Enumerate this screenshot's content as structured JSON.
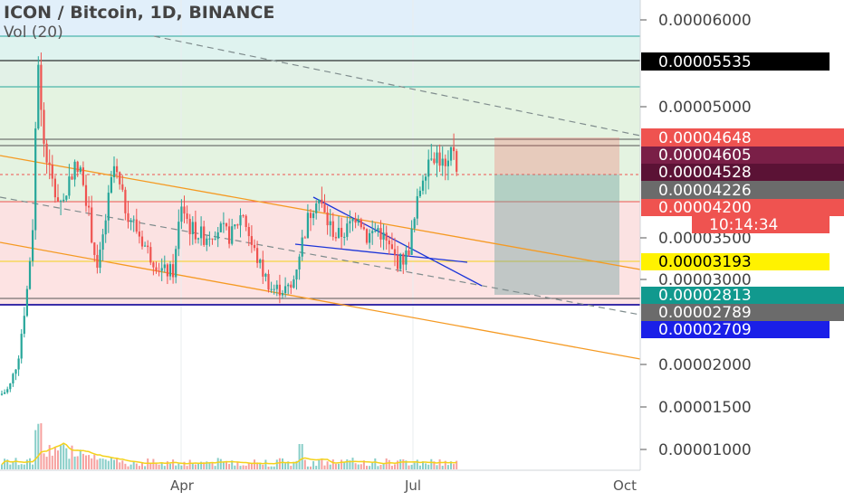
{
  "header": {
    "title": "ICON / Bitcoin, 1D, BINANCE",
    "indicator": "Vol (20)"
  },
  "colors": {
    "candle_up": "#26a69a",
    "candle_down": "#ef5350",
    "fib_top": "#e1effa",
    "fib_teal": "#dff3ef",
    "fib_green": "#e4f3e1",
    "fib_red": "#fbe2e2",
    "fib_yellow": "#fff8d6",
    "channel": "#f59a23",
    "wedge": "#1c35d8",
    "volume_ma": "#f4d21b",
    "purple_line": "#3b2fa8"
  },
  "chart_data": {
    "type": "candlestick",
    "title": "ICON / Bitcoin, 1D, BINANCE",
    "ylim": [
      8.3e-06,
      6.3e-06
    ],
    "y_ticks": [
      "0.00006000",
      "0.00005000",
      "0.00003500",
      "0.00003000",
      "0.00002000",
      "0.00001500",
      "0.00001000"
    ],
    "x_ticks": [
      "Apr",
      "Jul",
      "Oct"
    ],
    "price_labels": [
      {
        "text": "0.00005535",
        "value": 5.535e-05,
        "color": "#000000",
        "text_color": "#ffffff"
      },
      {
        "text": "0.00004648",
        "value": 4.648e-05,
        "color": "#ef5350",
        "text_color": "#ffffff"
      },
      {
        "text": "0.00004605",
        "value": 4.605e-05,
        "color": "#7a1f47",
        "text_color": "#ffffff"
      },
      {
        "text": "0.00004528",
        "value": 4.528e-05,
        "color": "#5b1235",
        "text_color": "#ffffff"
      },
      {
        "text": "0.00004226",
        "value": 4.226e-05,
        "color": "#6b6b6b",
        "text_color": "#ffffff"
      },
      {
        "text": "0.00004200",
        "value": 4.2e-05,
        "color": "#ef5350",
        "text_color": "#ffffff"
      },
      {
        "text": "0.00003193",
        "value": 3.193e-05,
        "color": "#fff200",
        "text_color": "#000000"
      },
      {
        "text": "0.00002813",
        "value": 2.813e-05,
        "color": "#11998e",
        "text_color": "#ffffff"
      },
      {
        "text": "0.00002789",
        "value": 2.789e-05,
        "color": "#6b6b6b",
        "text_color": "#ffffff"
      },
      {
        "text": "0.00002709",
        "value": 2.709e-05,
        "color": "#1a1fe8",
        "text_color": "#ffffff"
      }
    ],
    "countdown": "10:14:34",
    "fib_levels": [
      5.83e-05,
      5.535e-05,
      5.22e-05,
      4.62e-05,
      4.55e-05,
      4.13e-05,
      3.193e-05,
      2.79e-05,
      2.71e-05
    ],
    "position": {
      "entry": 4.226e-05,
      "stop": 4.648e-05,
      "target": 2.813e-05
    },
    "candles_ohlc_summary": "Daily candles from mid-January to early July; spike to ~0.0000595 in late January, range 0.0000279–0.0000465 afterwards, last close ~0.00004226."
  }
}
